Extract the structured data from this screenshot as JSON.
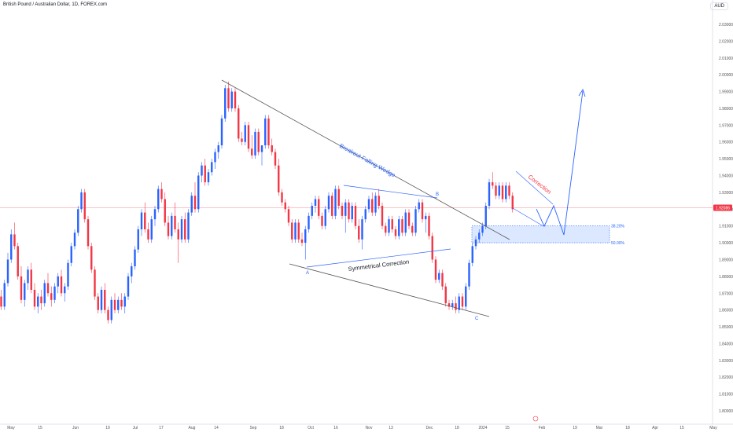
{
  "header": {
    "title": "British Pound / Australian Dollar, 1D, FOREX.com",
    "currency_button": "AUD"
  },
  "colors": {
    "up": "#2962ff",
    "down": "#f23645",
    "wedge_line": "#555555",
    "blue_line": "#2962ff",
    "fib_zone": "#cfe0ff",
    "price_line": "#f23645",
    "annotation_red": "#f23645"
  },
  "chart_data": {
    "type": "candlestick",
    "y_axis_position": "right",
    "ylim": [
      1.795,
      2.04
    ],
    "ytick_labels": [
      "2.03000",
      "2.02000",
      "2.01000",
      "2.00000",
      "1.99000",
      "1.98000",
      "1.97000",
      "1.96000",
      "1.95000",
      "1.94000",
      "1.93000",
      "1.92000",
      "1.91000",
      "1.90000",
      "1.89000",
      "1.88000",
      "1.87000",
      "1.86000",
      "1.85000",
      "1.84000",
      "1.83000",
      "1.82000",
      "1.81000",
      "1.80000"
    ],
    "xtick_labels": [
      "May",
      "15",
      "Jun",
      "19",
      "Jul",
      "17",
      "Aug",
      "14",
      "Sep",
      "18",
      "Oct",
      "16",
      "Nov",
      "13",
      "Dec",
      "18",
      "2024",
      "15",
      "Feb",
      "19",
      "Mar",
      "18",
      "Apr",
      "15",
      "May"
    ],
    "current_price_label": "1.92086",
    "current_price": 1.92086,
    "candles": [
      [
        1.868,
        1.872,
        1.86,
        1.862
      ],
      [
        1.862,
        1.878,
        1.86,
        1.876
      ],
      [
        1.876,
        1.894,
        1.874,
        1.89
      ],
      [
        1.89,
        1.908,
        1.888,
        1.905
      ],
      [
        1.905,
        1.912,
        1.896,
        1.898
      ],
      [
        1.898,
        1.9,
        1.878,
        1.88
      ],
      [
        1.88,
        1.886,
        1.864,
        1.866
      ],
      [
        1.866,
        1.878,
        1.862,
        1.876
      ],
      [
        1.876,
        1.886,
        1.872,
        1.884
      ],
      [
        1.884,
        1.888,
        1.87,
        1.872
      ],
      [
        1.872,
        1.876,
        1.86,
        1.862
      ],
      [
        1.862,
        1.87,
        1.858,
        1.868
      ],
      [
        1.868,
        1.872,
        1.86,
        1.864
      ],
      [
        1.864,
        1.878,
        1.862,
        1.876
      ],
      [
        1.876,
        1.882,
        1.868,
        1.87
      ],
      [
        1.87,
        1.874,
        1.862,
        1.866
      ],
      [
        1.866,
        1.876,
        1.864,
        1.874
      ],
      [
        1.874,
        1.882,
        1.87,
        1.88
      ],
      [
        1.88,
        1.884,
        1.868,
        1.87
      ],
      [
        1.87,
        1.876,
        1.865,
        1.874
      ],
      [
        1.874,
        1.89,
        1.872,
        1.888
      ],
      [
        1.888,
        1.9,
        1.886,
        1.898
      ],
      [
        1.898,
        1.908,
        1.896,
        1.906
      ],
      [
        1.906,
        1.922,
        1.904,
        1.92
      ],
      [
        1.92,
        1.932,
        1.918,
        1.93
      ],
      [
        1.93,
        1.932,
        1.912,
        1.914
      ],
      [
        1.914,
        1.916,
        1.896,
        1.898
      ],
      [
        1.898,
        1.9,
        1.882,
        1.884
      ],
      [
        1.884,
        1.886,
        1.866,
        1.868
      ],
      [
        1.868,
        1.87,
        1.858,
        1.86
      ],
      [
        1.86,
        1.874,
        1.858,
        1.872
      ],
      [
        1.872,
        1.876,
        1.858,
        1.86
      ],
      [
        1.86,
        1.862,
        1.852,
        1.854
      ],
      [
        1.854,
        1.868,
        1.852,
        1.866
      ],
      [
        1.866,
        1.87,
        1.858,
        1.86
      ],
      [
        1.86,
        1.868,
        1.858,
        1.866
      ],
      [
        1.866,
        1.87,
        1.86,
        1.862
      ],
      [
        1.862,
        1.87,
        1.858,
        1.868
      ],
      [
        1.868,
        1.882,
        1.866,
        1.88
      ],
      [
        1.88,
        1.888,
        1.876,
        1.886
      ],
      [
        1.886,
        1.898,
        1.884,
        1.896
      ],
      [
        1.896,
        1.91,
        1.894,
        1.908
      ],
      [
        1.908,
        1.92,
        1.904,
        1.918
      ],
      [
        1.918,
        1.924,
        1.906,
        1.908
      ],
      [
        1.908,
        1.912,
        1.9,
        1.902
      ],
      [
        1.902,
        1.916,
        1.9,
        1.914
      ],
      [
        1.914,
        1.922,
        1.91,
        1.92
      ],
      [
        1.92,
        1.934,
        1.918,
        1.932
      ],
      [
        1.932,
        1.936,
        1.924,
        1.926
      ],
      [
        1.926,
        1.93,
        1.91,
        1.912
      ],
      [
        1.912,
        1.916,
        1.902,
        1.904
      ],
      [
        1.904,
        1.918,
        1.902,
        1.916
      ],
      [
        1.916,
        1.924,
        1.906,
        1.908
      ],
      [
        1.908,
        1.912,
        1.888,
        1.902
      ],
      [
        1.902,
        1.916,
        1.9,
        1.914
      ],
      [
        1.914,
        1.918,
        1.9,
        1.902
      ],
      [
        1.902,
        1.92,
        1.9,
        1.918
      ],
      [
        1.918,
        1.93,
        1.916,
        1.928
      ],
      [
        1.928,
        1.936,
        1.918,
        1.92
      ],
      [
        1.92,
        1.942,
        1.918,
        1.94
      ],
      [
        1.94,
        1.948,
        1.936,
        1.946
      ],
      [
        1.946,
        1.95,
        1.934,
        1.936
      ],
      [
        1.936,
        1.944,
        1.934,
        1.942
      ],
      [
        1.942,
        1.95,
        1.94,
        1.948
      ],
      [
        1.948,
        1.956,
        1.944,
        1.954
      ],
      [
        1.954,
        1.96,
        1.95,
        1.958
      ],
      [
        1.958,
        1.976,
        1.956,
        1.974
      ],
      [
        1.974,
        1.994,
        1.972,
        1.992
      ],
      [
        1.992,
        1.996,
        1.978,
        1.98
      ],
      [
        1.98,
        1.992,
        1.978,
        1.99
      ],
      [
        1.99,
        1.992,
        1.978,
        1.98
      ],
      [
        1.98,
        1.982,
        1.96,
        1.962
      ],
      [
        1.962,
        1.966,
        1.958,
        1.96
      ],
      [
        1.96,
        1.972,
        1.958,
        1.97
      ],
      [
        1.97,
        1.972,
        1.954,
        1.956
      ],
      [
        1.956,
        1.964,
        1.95,
        1.952
      ],
      [
        1.952,
        1.968,
        1.95,
        1.966
      ],
      [
        1.966,
        1.968,
        1.952,
        1.954
      ],
      [
        1.954,
        1.956,
        1.946,
        1.958
      ],
      [
        1.958,
        1.976,
        1.956,
        1.974
      ],
      [
        1.974,
        1.976,
        1.956,
        1.958
      ],
      [
        1.958,
        1.962,
        1.952,
        1.954
      ],
      [
        1.954,
        1.956,
        1.944,
        1.946
      ],
      [
        1.946,
        1.95,
        1.928,
        1.93
      ],
      [
        1.93,
        1.932,
        1.922,
        1.924
      ],
      [
        1.924,
        1.926,
        1.918,
        1.92
      ],
      [
        1.92,
        1.922,
        1.91,
        1.912
      ],
      [
        1.912,
        1.914,
        1.9,
        1.902
      ],
      [
        1.902,
        1.914,
        1.9,
        1.912
      ],
      [
        1.912,
        1.914,
        1.9,
        1.902
      ],
      [
        1.902,
        1.906,
        1.898,
        1.9
      ],
      [
        1.9,
        1.91,
        1.89,
        1.908
      ],
      [
        1.908,
        1.918,
        1.906,
        1.916
      ],
      [
        1.916,
        1.924,
        1.914,
        1.922
      ],
      [
        1.922,
        1.928,
        1.918,
        1.926
      ],
      [
        1.926,
        1.928,
        1.914,
        1.916
      ],
      [
        1.916,
        1.918,
        1.908,
        1.91
      ],
      [
        1.91,
        1.922,
        1.908,
        1.92
      ],
      [
        1.92,
        1.93,
        1.918,
        1.928
      ],
      [
        1.928,
        1.93,
        1.914,
        1.916
      ],
      [
        1.916,
        1.934,
        1.914,
        1.932
      ],
      [
        1.932,
        1.934,
        1.92,
        1.922
      ],
      [
        1.922,
        1.924,
        1.914,
        1.916
      ],
      [
        1.916,
        1.926,
        1.906,
        1.924
      ],
      [
        1.924,
        1.926,
        1.912,
        1.914
      ],
      [
        1.914,
        1.924,
        1.912,
        1.922
      ],
      [
        1.922,
        1.924,
        1.908,
        1.91
      ],
      [
        1.91,
        1.914,
        1.9,
        1.902
      ],
      [
        1.902,
        1.916,
        1.896,
        1.914
      ],
      [
        1.914,
        1.922,
        1.912,
        1.92
      ],
      [
        1.92,
        1.928,
        1.918,
        1.926
      ],
      [
        1.926,
        1.93,
        1.916,
        1.918
      ],
      [
        1.918,
        1.93,
        1.916,
        1.928
      ],
      [
        1.928,
        1.932,
        1.92,
        1.922
      ],
      [
        1.922,
        1.924,
        1.908,
        1.91
      ],
      [
        1.91,
        1.912,
        1.904,
        1.906
      ],
      [
        1.906,
        1.916,
        1.904,
        1.914
      ],
      [
        1.914,
        1.916,
        1.906,
        1.908
      ],
      [
        1.908,
        1.91,
        1.902,
        1.904
      ],
      [
        1.904,
        1.916,
        1.902,
        1.914
      ],
      [
        1.914,
        1.916,
        1.904,
        1.906
      ],
      [
        1.906,
        1.92,
        1.904,
        1.918
      ],
      [
        1.918,
        1.92,
        1.908,
        1.91
      ],
      [
        1.91,
        1.912,
        1.904,
        1.906
      ],
      [
        1.906,
        1.922,
        1.904,
        1.92
      ],
      [
        1.92,
        1.926,
        1.918,
        1.924
      ],
      [
        1.924,
        1.926,
        1.912,
        1.914
      ],
      [
        1.914,
        1.918,
        1.906,
        1.916
      ],
      [
        1.916,
        1.918,
        1.902,
        1.904
      ],
      [
        1.904,
        1.906,
        1.888,
        1.89
      ],
      [
        1.89,
        1.892,
        1.876,
        1.878
      ],
      [
        1.878,
        1.884,
        1.876,
        1.882
      ],
      [
        1.882,
        1.884,
        1.872,
        1.874
      ],
      [
        1.874,
        1.876,
        1.862,
        1.864
      ],
      [
        1.864,
        1.866,
        1.86,
        1.862
      ],
      [
        1.862,
        1.866,
        1.86,
        1.864
      ],
      [
        1.864,
        1.868,
        1.858,
        1.86
      ],
      [
        1.86,
        1.87,
        1.858,
        1.868
      ],
      [
        1.868,
        1.87,
        1.86,
        1.862
      ],
      [
        1.862,
        1.876,
        1.86,
        1.874
      ],
      [
        1.874,
        1.89,
        1.872,
        1.888
      ],
      [
        1.888,
        1.9,
        1.886,
        1.898
      ],
      [
        1.898,
        1.904,
        1.896,
        1.902
      ],
      [
        1.902,
        1.908,
        1.9,
        1.906
      ],
      [
        1.906,
        1.912,
        1.904,
        1.91
      ],
      [
        1.91,
        1.924,
        1.908,
        1.922
      ],
      [
        1.922,
        1.938,
        1.92,
        1.936
      ],
      [
        1.936,
        1.942,
        1.932,
        1.934
      ],
      [
        1.934,
        1.936,
        1.926,
        1.928
      ],
      [
        1.928,
        1.936,
        1.926,
        1.934
      ],
      [
        1.934,
        1.936,
        1.924,
        1.926
      ],
      [
        1.926,
        1.936,
        1.924,
        1.934
      ],
      [
        1.934,
        1.936,
        1.926,
        1.928
      ],
      [
        1.928,
        1.93,
        1.918,
        1.92
      ]
    ],
    "annotations": {
      "wedge_label": "Breakout Falling Wedge",
      "symmetrical_label": "Symmetrical Correction",
      "correction_label": "Correction",
      "point_a": "A",
      "point_b": "B",
      "point_c": "C",
      "fib_382": "38.20%",
      "fib_500": "50.00%"
    }
  }
}
